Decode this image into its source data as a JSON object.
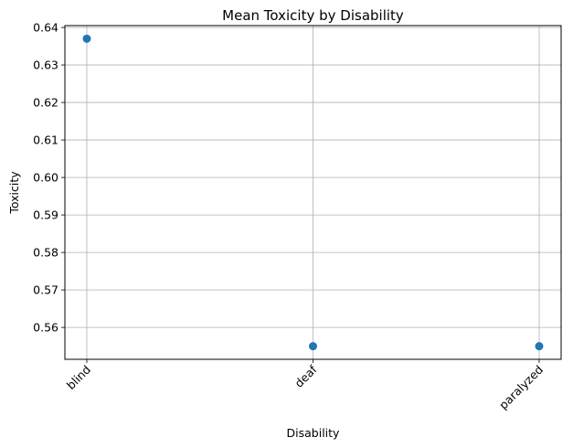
{
  "chart_data": {
    "type": "scatter",
    "title": "Mean Toxicity by Disability",
    "xlabel": "Disability",
    "ylabel": "Toxicity",
    "categories": [
      "blind",
      "deaf",
      "paralyzed"
    ],
    "values": [
      0.637,
      0.555,
      0.555
    ],
    "ylim": [
      0.5515,
      0.6405
    ],
    "yticks": [
      "0.56",
      "0.57",
      "0.58",
      "0.59",
      "0.60",
      "0.61",
      "0.62",
      "0.63",
      "0.64"
    ],
    "grid": true,
    "point_color": "#1f77b4",
    "grid_color": "#b0b0b0"
  }
}
